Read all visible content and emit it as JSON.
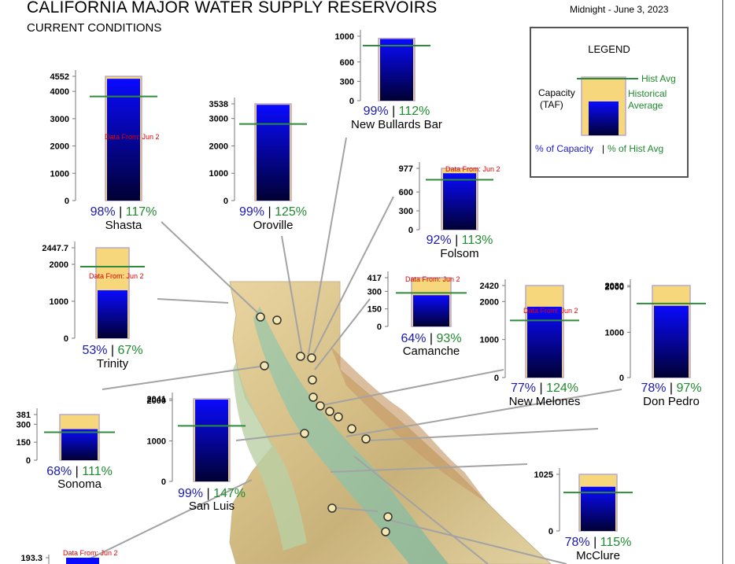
{
  "page": {
    "title": "CALIFORNIA MAJOR WATER SUPPLY RESERVOIRS",
    "subtitle": "CURRENT CONDITIONS",
    "timestamp": "Midnight - June 3, 2023"
  },
  "legend": {
    "title": "LEGEND",
    "capacity_label_1": "Capacity",
    "capacity_label_2": "(TAF)",
    "hist_avg_label": "Hist Avg",
    "historical_label_1": "Historical",
    "historical_label_2": "Average",
    "pct_capacity_label": "% of Capacity",
    "separator": "|",
    "pct_hist_label": "% of Hist Avg"
  },
  "colors": {
    "capacity_fill": "#f7d77b",
    "storage_top": "#0a0aff",
    "storage_bottom": "#000033",
    "hist_avg_line": "#2e8b3a",
    "pct_capacity_text": "#1a1ab0",
    "pct_hist_text": "#1f8a2e",
    "data_from_text": "#e00000"
  },
  "chart_data": {
    "type": "bar",
    "unit": "TAF",
    "reservoirs": [
      {
        "name": "Shasta",
        "capacity": 4552,
        "storage": 4461,
        "hist_avg": 3813,
        "pct_capacity": "98%",
        "pct_hist": "117%",
        "ticks": [
          "4552",
          "4000",
          "3000",
          "2000",
          "1000",
          "0"
        ],
        "tick_values": [
          4552,
          4000,
          3000,
          2000,
          1000,
          0
        ],
        "note": "Data From: Jun 2"
      },
      {
        "name": "Oroville",
        "capacity": 3538,
        "storage": 3503,
        "hist_avg": 2802,
        "pct_capacity": "99%",
        "pct_hist": "125%",
        "ticks": [
          "3538",
          "3000",
          "2000",
          "1000",
          "0"
        ],
        "tick_values": [
          3538,
          3000,
          2000,
          1000,
          0
        ],
        "note": ""
      },
      {
        "name": "New Bullards Bar",
        "capacity": 966,
        "storage": 956,
        "hist_avg": 854,
        "pct_capacity": "99%",
        "pct_hist": "112%",
        "ticks": [
          "1000",
          "600",
          "300",
          "0"
        ],
        "tick_values": [
          1000,
          600,
          300,
          0
        ],
        "note": ""
      },
      {
        "name": "Folsom",
        "capacity": 977,
        "storage": 899,
        "hist_avg": 796,
        "pct_capacity": "92%",
        "pct_hist": "113%",
        "ticks": [
          "977",
          "600",
          "300",
          "0"
        ],
        "tick_values": [
          977,
          600,
          300,
          0
        ],
        "note": "Data From: Jun 2"
      },
      {
        "name": "Trinity",
        "capacity": 2447.7,
        "storage": 1297,
        "hist_avg": 1936,
        "pct_capacity": "53%",
        "pct_hist": "67%",
        "ticks": [
          "2447.7",
          "2000",
          "1000",
          "0"
        ],
        "tick_values": [
          2447.7,
          2000,
          1000,
          0
        ],
        "note": "Data From: Jun 2"
      },
      {
        "name": "Camanche",
        "capacity": 417,
        "storage": 267,
        "hist_avg": 287,
        "pct_capacity": "64%",
        "pct_hist": "93%",
        "ticks": [
          "417",
          "300",
          "150",
          "0"
        ],
        "tick_values": [
          417,
          300,
          150,
          0
        ],
        "note": "Data From: Jun 2"
      },
      {
        "name": "New Melones",
        "capacity": 2420,
        "storage": 1863,
        "hist_avg": 1503,
        "pct_capacity": "77%",
        "pct_hist": "124%",
        "ticks": [
          "2420",
          "2000",
          "1000",
          "0"
        ],
        "tick_values": [
          2420,
          2000,
          1000,
          0
        ],
        "note": "Data From: Jun 2"
      },
      {
        "name": "Don Pedro",
        "capacity": 2030,
        "storage": 1583,
        "hist_avg": 1633,
        "pct_capacity": "78%",
        "pct_hist": "97%",
        "ticks": [
          "2030",
          "2000",
          "1000",
          "0"
        ],
        "tick_values": [
          2030,
          2000,
          1000,
          0
        ],
        "note": ""
      },
      {
        "name": "Sonoma",
        "capacity": 381,
        "storage": 259,
        "hist_avg": 233,
        "pct_capacity": "68%",
        "pct_hist": "111%",
        "ticks": [
          "381",
          "300",
          "150",
          "0"
        ],
        "tick_values": [
          381,
          300,
          150,
          0
        ],
        "note": ""
      },
      {
        "name": "San Luis",
        "capacity": 2041,
        "storage": 2021,
        "hist_avg": 1374,
        "pct_capacity": "99%",
        "pct_hist": "147%",
        "ticks": [
          "2041",
          "2000",
          "1000",
          "0"
        ],
        "tick_values": [
          2041,
          2000,
          1000,
          0
        ],
        "note": ""
      },
      {
        "name": "McClure",
        "capacity": 1025,
        "storage": 800,
        "hist_avg": 696,
        "pct_capacity": "78%",
        "pct_hist": "115%",
        "ticks": [
          "1025",
          "0"
        ],
        "tick_values": [
          1025,
          0
        ],
        "note": ""
      },
      {
        "name": "",
        "capacity": 193.3,
        "storage": 190,
        "hist_avg": 0,
        "pct_capacity": "",
        "pct_hist": "",
        "ticks": [
          "193.3"
        ],
        "tick_values": [
          193.3
        ],
        "note": "Data From: Jun 2"
      }
    ]
  }
}
